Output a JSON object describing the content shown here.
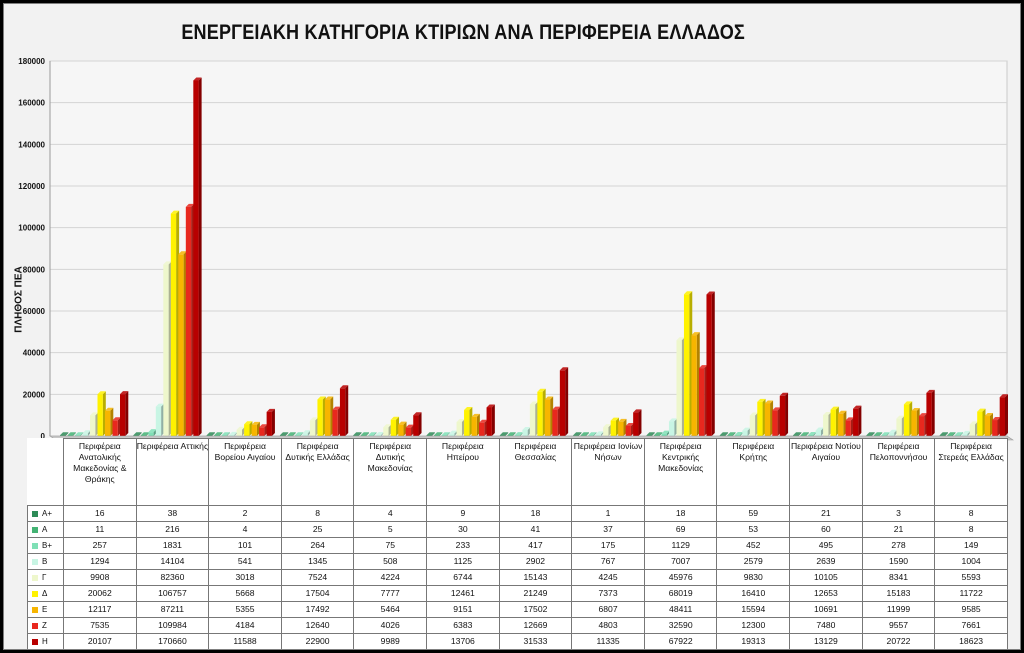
{
  "chart_data": {
    "type": "bar",
    "title": "ΕΝΕΡΓΕΙΑΚΗ ΚΑΤΗΓΟΡΙΑ ΚΤΙΡΙΩΝ ΑΝΑ ΠΕΡΙΦΕΡΕΙΑ ΕΛΛΑΔΟΣ",
    "ylabel": "ΠΛΗΘΟΣ ΠΕΑ",
    "xlabel": "",
    "ylim": [
      0,
      180000
    ],
    "yticks": [
      "0",
      "20000",
      "40000",
      "60000",
      "80000",
      "100000",
      "120000",
      "140000",
      "160000",
      "180000"
    ],
    "grid": true,
    "legend": "data-table",
    "categories": [
      "Περιφέρεια Ανατολικής Μακεδονίας & Θράκης",
      "Περιφέρεια Αττικής",
      "Περιφέρεια Βορείου Αιγαίου",
      "Περιφέρεια Δυτικής Ελλάδας",
      "Περιφέρεια Δυτικής Μακεδονίας",
      "Περιφέρεια Ηπείρου",
      "Περιφέρεια Θεσσαλίας",
      "Περιφέρεια Ιονίων Νήσων",
      "Περιφέρεια Κεντρικής Μακεδονίας",
      "Περιφέρεια Κρήτης",
      "Περιφέρεια Νοτίου Αιγαίου",
      "Περιφέρεια Πελοποννήσου",
      "Περιφέρεια Στερεάς Ελλάδας"
    ],
    "series": [
      {
        "name": "Α+",
        "color": "#2e8b57",
        "values": [
          16,
          38,
          2,
          8,
          4,
          9,
          18,
          1,
          18,
          59,
          21,
          3,
          8
        ]
      },
      {
        "name": "Α",
        "color": "#43b374",
        "values": [
          11,
          216,
          4,
          25,
          5,
          30,
          41,
          37,
          69,
          53,
          60,
          21,
          8
        ]
      },
      {
        "name": "Β+",
        "color": "#7fe0b6",
        "values": [
          257,
          1831,
          101,
          264,
          75,
          233,
          417,
          175,
          1129,
          452,
          495,
          278,
          149
        ]
      },
      {
        "name": "Β",
        "color": "#c8f5e4",
        "values": [
          1294,
          14104,
          541,
          1345,
          508,
          1125,
          2902,
          767,
          7007,
          2579,
          2639,
          1590,
          1004
        ]
      },
      {
        "name": "Γ",
        "color": "#eef7cc",
        "values": [
          9908,
          82360,
          3018,
          7524,
          4224,
          6744,
          15143,
          4245,
          45976,
          9830,
          10105,
          8341,
          5593
        ]
      },
      {
        "name": "Δ",
        "color": "#fff200",
        "values": [
          20062,
          106757,
          5668,
          17504,
          7777,
          12461,
          21249,
          7373,
          68019,
          16410,
          12653,
          15183,
          11722
        ]
      },
      {
        "name": "Ε",
        "color": "#f7b500",
        "values": [
          12117,
          87211,
          5355,
          17492,
          5464,
          9151,
          17502,
          6807,
          48411,
          15594,
          10691,
          11999,
          9585
        ]
      },
      {
        "name": "Ζ",
        "color": "#e8281e",
        "values": [
          7535,
          109984,
          4184,
          12640,
          4026,
          6383,
          12669,
          4803,
          32590,
          12300,
          7480,
          9557,
          7661
        ]
      },
      {
        "name": "Η",
        "color": "#b80000",
        "values": [
          20107,
          170660,
          11588,
          22900,
          9989,
          13706,
          31533,
          11335,
          67922,
          19313,
          13129,
          20722,
          18623
        ]
      }
    ]
  }
}
